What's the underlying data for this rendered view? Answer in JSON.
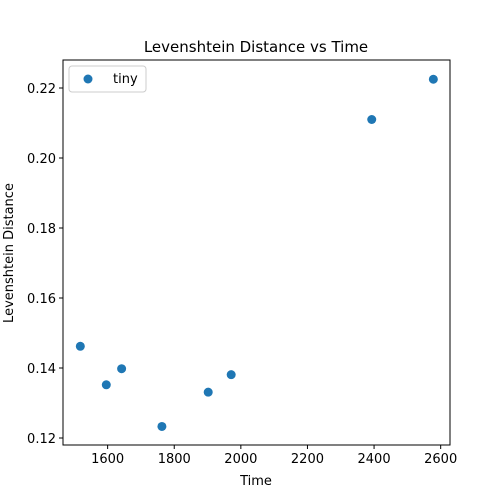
{
  "chart_data": {
    "type": "scatter",
    "title": "Levenshtein Distance vs Time",
    "xlabel": "Time",
    "ylabel": "Levenshtein Distance",
    "xlim": [
      1466,
      2628
    ],
    "ylim": [
      0.118,
      0.228
    ],
    "x_ticks": [
      1600,
      1800,
      2000,
      2200,
      2400,
      2600
    ],
    "y_ticks": [
      0.12,
      0.14,
      0.16,
      0.18,
      0.2,
      0.22
    ],
    "x_tick_labels": [
      "1600",
      "1800",
      "2000",
      "2200",
      "2400",
      "2600"
    ],
    "y_tick_labels": [
      "0.12",
      "0.14",
      "0.16",
      "0.18",
      "0.20",
      "0.22"
    ],
    "grid": false,
    "legend_position": "top-left",
    "series": [
      {
        "name": "tiny",
        "color": "#1f77b4",
        "points": [
          {
            "x": 1518,
            "y": 0.1462
          },
          {
            "x": 1596,
            "y": 0.1352
          },
          {
            "x": 1642,
            "y": 0.1398
          },
          {
            "x": 1763,
            "y": 0.1233
          },
          {
            "x": 1902,
            "y": 0.1331
          },
          {
            "x": 1971,
            "y": 0.1381
          },
          {
            "x": 2393,
            "y": 0.211
          },
          {
            "x": 2578,
            "y": 0.2225
          }
        ]
      }
    ]
  }
}
